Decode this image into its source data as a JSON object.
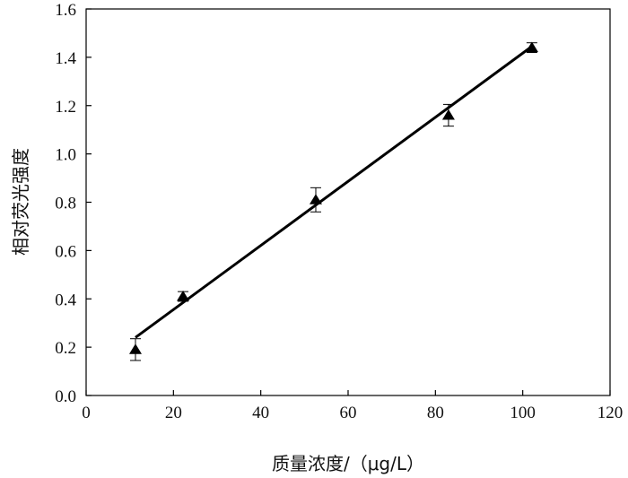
{
  "chart_data": {
    "type": "scatter",
    "title": "",
    "xlabel": "质量浓度/（μg/L）",
    "ylabel": "相对荧光强度",
    "xlim": [
      0,
      120
    ],
    "ylim": [
      0,
      1.6
    ],
    "x_ticks": [
      "0",
      "20",
      "40",
      "60",
      "80",
      "100",
      "120"
    ],
    "y_ticks": [
      "0.0",
      "0.2",
      "0.4",
      "0.6",
      "0.8",
      "1.0",
      "1.2",
      "1.4",
      "1.6"
    ],
    "grid": false,
    "legend": "none",
    "series": [
      {
        "marker": "triangle",
        "color": "#000000",
        "x": [
          11.3,
          22.2,
          52.6,
          83.0,
          102.1
        ],
        "y": [
          0.19,
          0.41,
          0.81,
          1.16,
          1.44
        ],
        "error": [
          0.045,
          0.02,
          0.05,
          0.045,
          0.02
        ]
      }
    ],
    "fit_line": {
      "x": [
        11.3,
        102.1
      ],
      "y": [
        0.24,
        1.445
      ],
      "color": "#000000"
    }
  }
}
